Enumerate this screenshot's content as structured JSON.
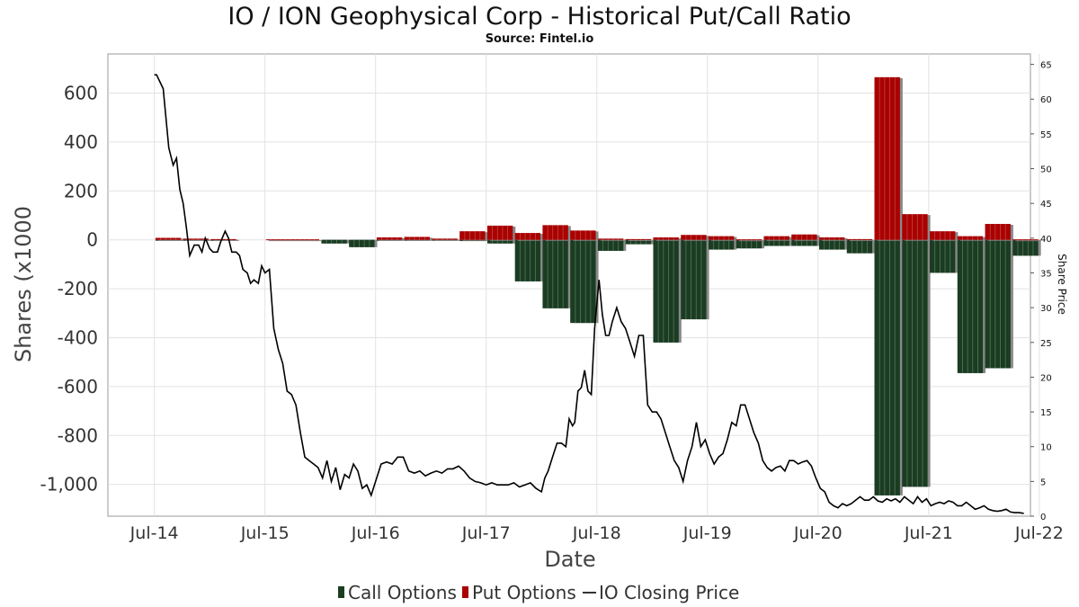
{
  "chart_data": {
    "type": "bar",
    "title": "IO / ION Geophysical Corp - Historical Put/Call Ratio",
    "subtitle": "Source: Fintel.io",
    "xlabel": "Date",
    "ylabel": "Shares (x1000",
    "y2label": "Share Price",
    "ylim": [
      -1130,
      760
    ],
    "y2lim": [
      0,
      66.5
    ],
    "xlim": [
      2014.08,
      2022.42
    ],
    "grid": true,
    "legend_position": "bottom",
    "y_ticks": [
      600,
      400,
      200,
      0,
      -200,
      -400,
      -600,
      -800,
      -1000
    ],
    "y_tick_labels": [
      "600",
      "400",
      "200",
      "0",
      "-200",
      "-400",
      "-600",
      "-800",
      "-1,000"
    ],
    "y2_ticks": [
      65,
      60,
      55,
      50,
      45,
      40,
      35,
      30,
      25,
      20,
      15,
      10,
      5,
      0
    ],
    "x_ticks": [
      2014.5,
      2015.5,
      2016.5,
      2017.5,
      2018.5,
      2019.5,
      2020.5,
      2021.5,
      2022.5
    ],
    "x_tick_labels": [
      "Jul-14",
      "Jul-15",
      "Jul-16",
      "Jul-17",
      "Jul-18",
      "Jul-19",
      "Jul-20",
      "Jul-21",
      "Jul-22"
    ],
    "colors": {
      "call": "#1a3d22",
      "put": "#aa0000",
      "price": "#000000",
      "shadow": "#888888"
    },
    "series": [
      {
        "name": "Call Options",
        "periods": [
          {
            "start": 2014.5,
            "end": 2015.25,
            "value": -2
          },
          {
            "start": 2016.0,
            "end": 2016.25,
            "value": -15
          },
          {
            "start": 2016.25,
            "end": 2016.5,
            "value": -30
          },
          {
            "start": 2016.5,
            "end": 2016.75,
            "value": -3
          },
          {
            "start": 2016.75,
            "end": 2017.0,
            "value": -3
          },
          {
            "start": 2017.0,
            "end": 2017.25,
            "value": -3
          },
          {
            "start": 2017.25,
            "end": 2017.5,
            "value": -5
          },
          {
            "start": 2017.5,
            "end": 2017.75,
            "value": -15
          },
          {
            "start": 2017.75,
            "end": 2018.0,
            "value": -170
          },
          {
            "start": 2018.0,
            "end": 2018.25,
            "value": -280
          },
          {
            "start": 2018.25,
            "end": 2018.5,
            "value": -340
          },
          {
            "start": 2018.5,
            "end": 2018.75,
            "value": -45
          },
          {
            "start": 2018.75,
            "end": 2019.0,
            "value": -18
          },
          {
            "start": 2019.0,
            "end": 2019.25,
            "value": -420
          },
          {
            "start": 2019.25,
            "end": 2019.5,
            "value": -325
          },
          {
            "start": 2019.5,
            "end": 2019.75,
            "value": -40
          },
          {
            "start": 2019.75,
            "end": 2020.0,
            "value": -35
          },
          {
            "start": 2020.0,
            "end": 2020.25,
            "value": -25
          },
          {
            "start": 2020.25,
            "end": 2020.5,
            "value": -25
          },
          {
            "start": 2020.5,
            "end": 2020.75,
            "value": -40
          },
          {
            "start": 2020.75,
            "end": 2021.0,
            "value": -55
          },
          {
            "start": 2021.0,
            "end": 2021.25,
            "value": -1045
          },
          {
            "start": 2021.25,
            "end": 2021.5,
            "value": -1010
          },
          {
            "start": 2021.5,
            "end": 2021.75,
            "value": -135
          },
          {
            "start": 2021.75,
            "end": 2022.0,
            "value": -545
          },
          {
            "start": 2022.0,
            "end": 2022.25,
            "value": -525
          },
          {
            "start": 2022.25,
            "end": 2022.5,
            "value": -65
          }
        ]
      },
      {
        "name": "Put Options",
        "periods": [
          {
            "start": 2014.5,
            "end": 2014.75,
            "value": 8
          },
          {
            "start": 2014.75,
            "end": 2015.0,
            "value": 5
          },
          {
            "start": 2015.0,
            "end": 2015.25,
            "value": 3
          },
          {
            "start": 2015.5,
            "end": 2016.0,
            "value": 2
          },
          {
            "start": 2016.5,
            "end": 2016.75,
            "value": 10
          },
          {
            "start": 2016.75,
            "end": 2017.0,
            "value": 12
          },
          {
            "start": 2017.0,
            "end": 2017.25,
            "value": 5
          },
          {
            "start": 2017.25,
            "end": 2017.5,
            "value": 35
          },
          {
            "start": 2017.5,
            "end": 2017.75,
            "value": 58
          },
          {
            "start": 2017.75,
            "end": 2018.0,
            "value": 28
          },
          {
            "start": 2018.0,
            "end": 2018.25,
            "value": 60
          },
          {
            "start": 2018.25,
            "end": 2018.5,
            "value": 38
          },
          {
            "start": 2018.5,
            "end": 2018.75,
            "value": 5
          },
          {
            "start": 2018.75,
            "end": 2019.0,
            "value": 3
          },
          {
            "start": 2019.0,
            "end": 2019.25,
            "value": 10
          },
          {
            "start": 2019.25,
            "end": 2019.5,
            "value": 20
          },
          {
            "start": 2019.5,
            "end": 2019.75,
            "value": 15
          },
          {
            "start": 2019.75,
            "end": 2020.0,
            "value": 2
          },
          {
            "start": 2020.0,
            "end": 2020.25,
            "value": 15
          },
          {
            "start": 2020.25,
            "end": 2020.5,
            "value": 22
          },
          {
            "start": 2020.5,
            "end": 2020.75,
            "value": 10
          },
          {
            "start": 2020.75,
            "end": 2021.0,
            "value": 3
          },
          {
            "start": 2021.0,
            "end": 2021.25,
            "value": 665
          },
          {
            "start": 2021.25,
            "end": 2021.5,
            "value": 105
          },
          {
            "start": 2021.5,
            "end": 2021.75,
            "value": 35
          },
          {
            "start": 2021.75,
            "end": 2022.0,
            "value": 15
          },
          {
            "start": 2022.0,
            "end": 2022.25,
            "value": 65
          },
          {
            "start": 2022.25,
            "end": 2022.5,
            "value": 2
          }
        ]
      },
      {
        "name": "IO Closing Price",
        "axis": "right",
        "points": [
          [
            2014.5,
            63.5
          ],
          [
            2014.52,
            63.5
          ],
          [
            2014.58,
            61.5
          ],
          [
            2014.63,
            53
          ],
          [
            2014.67,
            50.5
          ],
          [
            2014.7,
            51.5
          ],
          [
            2014.73,
            47
          ],
          [
            2014.76,
            45
          ],
          [
            2014.79,
            41.5
          ],
          [
            2014.82,
            37.5
          ],
          [
            2014.86,
            39
          ],
          [
            2014.9,
            39
          ],
          [
            2014.93,
            38
          ],
          [
            2014.96,
            40
          ],
          [
            2015.0,
            38.5
          ],
          [
            2015.03,
            38
          ],
          [
            2015.07,
            38
          ],
          [
            2015.1,
            39.5
          ],
          [
            2015.14,
            41
          ],
          [
            2015.17,
            40
          ],
          [
            2015.2,
            38
          ],
          [
            2015.24,
            38
          ],
          [
            2015.27,
            37.5
          ],
          [
            2015.3,
            35.5
          ],
          [
            2015.34,
            35
          ],
          [
            2015.37,
            33.5
          ],
          [
            2015.4,
            34
          ],
          [
            2015.44,
            33.5
          ],
          [
            2015.47,
            36
          ],
          [
            2015.5,
            35
          ],
          [
            2015.54,
            35.5
          ],
          [
            2015.58,
            27
          ],
          [
            2015.62,
            24
          ],
          [
            2015.66,
            22
          ],
          [
            2015.7,
            18
          ],
          [
            2015.74,
            17.5
          ],
          [
            2015.78,
            16
          ],
          [
            2015.82,
            12
          ],
          [
            2015.86,
            8.5
          ],
          [
            2015.9,
            8
          ],
          [
            2015.94,
            7.5
          ],
          [
            2015.98,
            7
          ],
          [
            2016.02,
            5.5
          ],
          [
            2016.06,
            8
          ],
          [
            2016.1,
            5
          ],
          [
            2016.14,
            7
          ],
          [
            2016.18,
            3.8
          ],
          [
            2016.22,
            6
          ],
          [
            2016.26,
            5.5
          ],
          [
            2016.3,
            7.5
          ],
          [
            2016.34,
            6.5
          ],
          [
            2016.38,
            4
          ],
          [
            2016.42,
            4.5
          ],
          [
            2016.46,
            3
          ],
          [
            2016.5,
            5
          ],
          [
            2016.55,
            7.5
          ],
          [
            2016.6,
            7.8
          ],
          [
            2016.65,
            7.5
          ],
          [
            2016.7,
            8.5
          ],
          [
            2016.75,
            8.5
          ],
          [
            2016.8,
            6.5
          ],
          [
            2016.85,
            6.2
          ],
          [
            2016.9,
            6.5
          ],
          [
            2016.95,
            5.8
          ],
          [
            2017.0,
            6.2
          ],
          [
            2017.05,
            6.5
          ],
          [
            2017.1,
            6.2
          ],
          [
            2017.15,
            6.8
          ],
          [
            2017.2,
            6.8
          ],
          [
            2017.25,
            7.2
          ],
          [
            2017.3,
            6.5
          ],
          [
            2017.35,
            5.5
          ],
          [
            2017.4,
            5.0
          ],
          [
            2017.45,
            4.8
          ],
          [
            2017.5,
            4.5
          ],
          [
            2017.55,
            4.8
          ],
          [
            2017.6,
            4.5
          ],
          [
            2017.65,
            4.5
          ],
          [
            2017.7,
            4.5
          ],
          [
            2017.75,
            4.8
          ],
          [
            2017.8,
            4.2
          ],
          [
            2017.85,
            4.5
          ],
          [
            2017.9,
            4.8
          ],
          [
            2017.95,
            4.0
          ],
          [
            2018.0,
            3.5
          ],
          [
            2018.03,
            5.5
          ],
          [
            2018.06,
            6.5
          ],
          [
            2018.1,
            8.5
          ],
          [
            2018.14,
            10.5
          ],
          [
            2018.18,
            10.5
          ],
          [
            2018.22,
            10
          ],
          [
            2018.25,
            14
          ],
          [
            2018.28,
            13
          ],
          [
            2018.3,
            13.5
          ],
          [
            2018.33,
            18
          ],
          [
            2018.36,
            18.5
          ],
          [
            2018.39,
            21
          ],
          [
            2018.42,
            18
          ],
          [
            2018.45,
            17.5
          ],
          [
            2018.48,
            27
          ],
          [
            2018.52,
            34
          ],
          [
            2018.55,
            29
          ],
          [
            2018.58,
            26
          ],
          [
            2018.61,
            26
          ],
          [
            2018.64,
            28
          ],
          [
            2018.68,
            30
          ],
          [
            2018.72,
            28
          ],
          [
            2018.76,
            27
          ],
          [
            2018.8,
            25
          ],
          [
            2018.84,
            23
          ],
          [
            2018.88,
            26
          ],
          [
            2018.92,
            26
          ],
          [
            2018.96,
            16
          ],
          [
            2019.0,
            15
          ],
          [
            2019.04,
            15
          ],
          [
            2019.08,
            14
          ],
          [
            2019.12,
            12
          ],
          [
            2019.16,
            10
          ],
          [
            2019.2,
            8
          ],
          [
            2019.24,
            7
          ],
          [
            2019.28,
            5
          ],
          [
            2019.32,
            8
          ],
          [
            2019.36,
            10
          ],
          [
            2019.4,
            13.5
          ],
          [
            2019.44,
            10
          ],
          [
            2019.48,
            11
          ],
          [
            2019.52,
            9
          ],
          [
            2019.56,
            7.5
          ],
          [
            2019.6,
            8.5
          ],
          [
            2019.64,
            9
          ],
          [
            2019.68,
            11
          ],
          [
            2019.72,
            13.5
          ],
          [
            2019.76,
            13
          ],
          [
            2019.8,
            16
          ],
          [
            2019.84,
            16
          ],
          [
            2019.88,
            14
          ],
          [
            2019.92,
            12
          ],
          [
            2019.96,
            10.5
          ],
          [
            2020.0,
            8
          ],
          [
            2020.04,
            7
          ],
          [
            2020.08,
            6.5
          ],
          [
            2020.12,
            7
          ],
          [
            2020.16,
            7.2
          ],
          [
            2020.2,
            6.5
          ],
          [
            2020.24,
            8
          ],
          [
            2020.28,
            8
          ],
          [
            2020.32,
            7.5
          ],
          [
            2020.36,
            7.8
          ],
          [
            2020.4,
            8
          ],
          [
            2020.44,
            7.2
          ],
          [
            2020.48,
            5.5
          ],
          [
            2020.52,
            4
          ],
          [
            2020.56,
            3.5
          ],
          [
            2020.6,
            2
          ],
          [
            2020.64,
            1.5
          ],
          [
            2020.68,
            1.2
          ],
          [
            2020.72,
            1.8
          ],
          [
            2020.76,
            1.5
          ],
          [
            2020.8,
            1.8
          ],
          [
            2020.84,
            2.3
          ],
          [
            2020.88,
            2.8
          ],
          [
            2020.92,
            2.3
          ],
          [
            2020.96,
            2.3
          ],
          [
            2021.0,
            2.8
          ],
          [
            2021.04,
            2.2
          ],
          [
            2021.08,
            2.0
          ],
          [
            2021.12,
            2.5
          ],
          [
            2021.16,
            2.2
          ],
          [
            2021.2,
            2.5
          ],
          [
            2021.24,
            2.0
          ],
          [
            2021.28,
            2.8
          ],
          [
            2021.32,
            2.3
          ],
          [
            2021.36,
            1.8
          ],
          [
            2021.4,
            2.8
          ],
          [
            2021.44,
            2.0
          ],
          [
            2021.48,
            2.5
          ],
          [
            2021.52,
            1.5
          ],
          [
            2021.56,
            1.8
          ],
          [
            2021.6,
            2.0
          ],
          [
            2021.64,
            1.8
          ],
          [
            2021.68,
            2.2
          ],
          [
            2021.72,
            2.0
          ],
          [
            2021.76,
            1.5
          ],
          [
            2021.8,
            1.5
          ],
          [
            2021.84,
            2.0
          ],
          [
            2021.88,
            1.5
          ],
          [
            2021.92,
            1.0
          ],
          [
            2021.96,
            1.2
          ],
          [
            2022.0,
            1.5
          ],
          [
            2022.04,
            1.0
          ],
          [
            2022.08,
            0.8
          ],
          [
            2022.12,
            0.7
          ],
          [
            2022.16,
            0.8
          ],
          [
            2022.2,
            1.0
          ],
          [
            2022.24,
            0.6
          ],
          [
            2022.28,
            0.5
          ],
          [
            2022.32,
            0.5
          ],
          [
            2022.36,
            0.4
          ]
        ]
      }
    ]
  }
}
